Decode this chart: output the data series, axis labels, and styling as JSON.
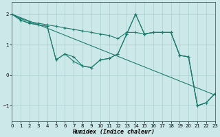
{
  "xlabel": "Humidex (Indice chaleur)",
  "bg_color": "#cce8e8",
  "grid_color": "#aacfcf",
  "line_color": "#1e7b6e",
  "xlim": [
    0,
    23
  ],
  "ylim": [
    -1.5,
    2.4
  ],
  "xticks": [
    0,
    1,
    2,
    3,
    4,
    5,
    6,
    7,
    8,
    9,
    10,
    11,
    12,
    13,
    14,
    15,
    16,
    17,
    18,
    19,
    20,
    21,
    22,
    23
  ],
  "yticks": [
    -1,
    0,
    1,
    2
  ],
  "line1_x": [
    0,
    23
  ],
  "line1_y": [
    2.0,
    -0.65
  ],
  "line2_x": [
    0,
    1,
    2,
    3,
    4,
    5,
    6,
    7,
    8,
    9,
    10,
    11,
    12,
    13,
    14,
    15,
    16,
    17,
    18,
    19,
    20,
    21,
    22,
    23
  ],
  "line2_y": [
    2.0,
    1.8,
    1.7,
    1.65,
    1.6,
    0.5,
    0.7,
    0.45,
    0.3,
    0.25,
    0.5,
    0.55,
    0.7,
    1.35,
    2.0,
    1.35,
    1.4,
    1.4,
    1.4,
    0.65,
    0.6,
    -1.0,
    -0.9,
    -0.6
  ],
  "line3_x": [
    0,
    1,
    2,
    3,
    4,
    5,
    6,
    7,
    8,
    9,
    10,
    11,
    12,
    13,
    14,
    15,
    16,
    17,
    18,
    19,
    20,
    21,
    22,
    23
  ],
  "line3_y": [
    2.0,
    1.8,
    1.7,
    1.65,
    1.6,
    0.5,
    0.7,
    0.6,
    0.3,
    0.25,
    0.5,
    0.55,
    0.7,
    1.35,
    2.0,
    1.35,
    1.4,
    1.4,
    1.4,
    0.65,
    0.6,
    -1.0,
    -0.9,
    -0.6
  ],
  "line4_x": [
    0,
    1,
    2,
    3,
    4,
    5,
    6,
    7,
    8,
    9,
    10,
    11,
    12,
    13,
    14,
    15,
    16,
    17,
    18,
    19,
    20,
    21,
    22,
    23
  ],
  "line4_y": [
    2.0,
    1.85,
    1.75,
    1.7,
    1.65,
    1.6,
    1.55,
    1.5,
    1.45,
    1.4,
    1.35,
    1.3,
    1.2,
    1.4,
    1.4,
    1.35,
    1.4,
    1.4,
    1.4,
    0.65,
    0.6,
    -1.0,
    -0.9,
    -0.6
  ]
}
